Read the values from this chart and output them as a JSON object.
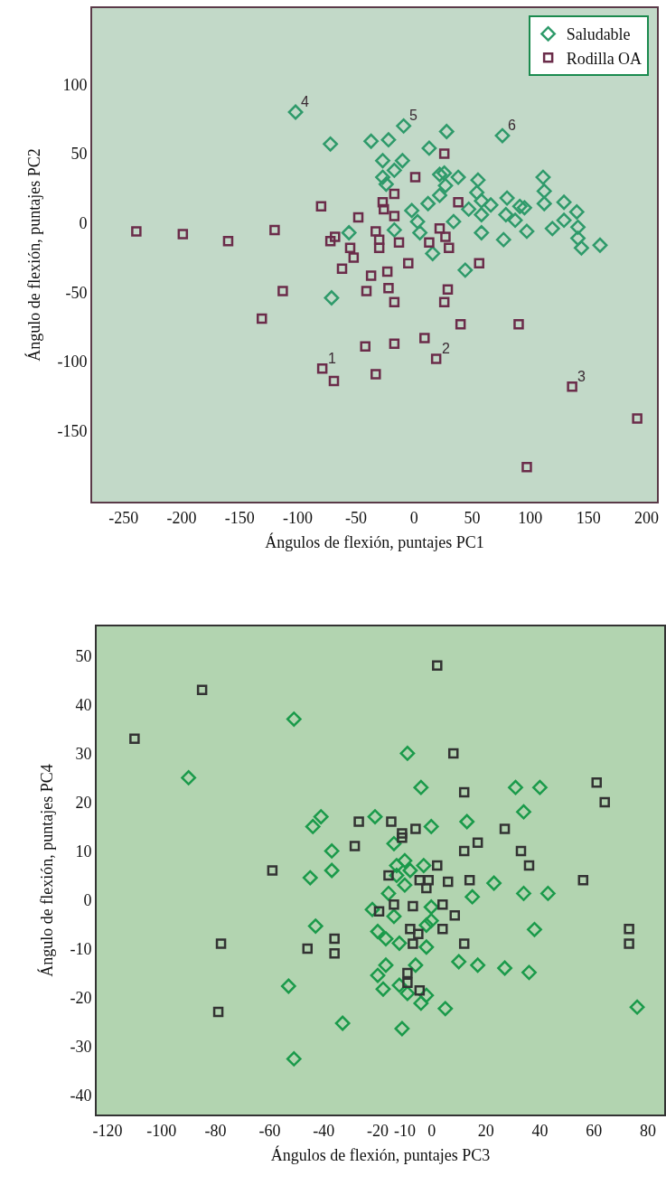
{
  "chart_data": [
    {
      "type": "scatter",
      "xlabel": "Ángulos de flexión, puntajes PC1",
      "ylabel": "Ángulo de flexión, puntajes PC2",
      "xlim": [
        -277,
        209
      ],
      "ylim": [
        -201,
        155
      ],
      "xticks": [
        -250,
        -200,
        -150,
        -100,
        -50,
        0,
        50,
        100,
        150,
        200
      ],
      "yticks": [
        -150,
        -100,
        -50,
        0,
        50,
        100
      ],
      "grid": false,
      "legend": "top right",
      "annotations": [
        {
          "text": "1",
          "x": -79,
          "y": -105
        },
        {
          "text": "2",
          "x": 19,
          "y": -98
        },
        {
          "text": "3",
          "x": 136,
          "y": -118
        },
        {
          "text": "4",
          "x": -102,
          "y": 80
        },
        {
          "text": "5",
          "x": -9,
          "y": 70
        },
        {
          "text": "6",
          "x": 76,
          "y": 63
        }
      ],
      "series": [
        {
          "name": "Saludable",
          "color": "#2e9a6a",
          "marker": "diamond",
          "x": [
            -102,
            -72,
            -37,
            -22,
            -27,
            -9,
            28,
            13,
            -10,
            -17,
            -27,
            -24,
            22,
            26,
            38,
            55,
            27,
            22,
            12,
            -2,
            3,
            5,
            16,
            -17,
            34,
            47,
            54,
            58,
            66,
            58,
            58,
            44,
            76,
            80,
            79,
            87,
            91,
            95,
            97,
            77,
            111,
            112,
            112,
            129,
            129,
            119,
            140,
            141,
            141,
            144,
            160,
            -56,
            -71
          ],
          "values": [
            80,
            57,
            59,
            60,
            45,
            70,
            66,
            54,
            45,
            38,
            33,
            28,
            35,
            36,
            33,
            31,
            27,
            20,
            14,
            9,
            1,
            -7,
            -22,
            -5,
            1,
            10,
            22,
            16,
            13,
            6,
            -7,
            -34,
            63,
            18,
            6,
            2,
            12,
            11,
            -6,
            -12,
            33,
            23,
            14,
            15,
            2,
            -4,
            8,
            -3,
            -11,
            -18,
            -16,
            -7,
            -54
          ]
        },
        {
          "name": "Rodilla OA",
          "color": "#6b2c4a",
          "marker": "square",
          "x": [
            -239,
            -199,
            -160,
            -120,
            -80,
            -48,
            -72,
            -68,
            -55,
            -52,
            -62,
            -131,
            -113,
            -79,
            -69,
            26,
            1,
            -17,
            -27,
            -26,
            -17,
            38,
            -33,
            -30,
            -30,
            -13,
            13,
            22,
            27,
            30,
            -5,
            56,
            -37,
            -23,
            -22,
            -41,
            -17,
            29,
            26,
            40,
            90,
            -42,
            -17,
            9,
            19,
            -33,
            136,
            192,
            97
          ],
          "values": [
            -6,
            -8,
            -13,
            -5,
            12,
            4,
            -13,
            -10,
            -18,
            -25,
            -33,
            -69,
            -49,
            -105,
            -114,
            50,
            33,
            21,
            15,
            10,
            5,
            15,
            -6,
            -12,
            -18,
            -14,
            -14,
            -4,
            -10,
            -18,
            -29,
            -29,
            -38,
            -35,
            -47,
            -49,
            -57,
            -48,
            -57,
            -73,
            -73,
            -89,
            -87,
            -83,
            -98,
            -109,
            -118,
            -141,
            -176
          ]
        }
      ]
    },
    {
      "type": "scatter",
      "xlabel": "Ángulos de flexión, puntajes PC3",
      "ylabel": "Ángulo de flexión, puntajes PC4",
      "xlim": [
        -124,
        86
      ],
      "ylim": [
        -44,
        56
      ],
      "xticks": [
        -120,
        -100,
        -80,
        -60,
        -40,
        -20,
        -10,
        0,
        20,
        40,
        60,
        80
      ],
      "yticks": [
        -40,
        -30,
        -20,
        -10,
        0,
        10,
        20,
        30,
        40,
        50
      ],
      "grid": false,
      "series": [
        {
          "color": "#1a9a4a",
          "marker": "diamond",
          "x": [
            -51,
            -90,
            -41,
            -44,
            -21,
            -37,
            -37,
            -45,
            -22,
            -20,
            -43,
            -53,
            -33,
            -51,
            -20,
            -18,
            -9,
            -4,
            31,
            40,
            34,
            -0.2,
            13,
            -14,
            -13,
            -10,
            -8,
            -13,
            -3,
            -10,
            23,
            34,
            43,
            -16,
            15,
            -14,
            -0.2,
            -2,
            -0.2,
            -17,
            -12,
            -2,
            38,
            -17,
            -6,
            10,
            17,
            27,
            36,
            -12,
            -9,
            -2,
            -4,
            5,
            -11,
            76
          ],
          "values": [
            37,
            25,
            17,
            15,
            17,
            10,
            6,
            4.5,
            -2,
            -6.5,
            -5.4,
            -17.7,
            -25.3,
            -32.6,
            -15.5,
            -18.3,
            30,
            23,
            23,
            23,
            18,
            15,
            16,
            11.5,
            7,
            8,
            6,
            5,
            7,
            3,
            3.4,
            1.3,
            1.3,
            1.3,
            0.6,
            -3.4,
            -1.5,
            -5.2,
            -4.3,
            -8,
            -8.9,
            -9.7,
            -6.1,
            -13.4,
            -13.4,
            -12.7,
            -13.4,
            -14,
            -14.9,
            -17.5,
            -19.2,
            -19.6,
            -21.2,
            -22.3,
            -26.4,
            -22
          ]
        },
        {
          "color": "#333333",
          "marker": "square",
          "x": [
            -85,
            -110,
            -27,
            -28.5,
            -59,
            -19.5,
            -78,
            -36,
            -36,
            -46,
            -79,
            2,
            8,
            12,
            61,
            64,
            -15,
            -6,
            27,
            -11,
            -11,
            12,
            17,
            33,
            36,
            2,
            -16,
            -4.5,
            -2,
            -1.2,
            6,
            14,
            56,
            -14,
            -7,
            4,
            8.5,
            4,
            -8,
            -5,
            -7,
            12,
            73,
            73,
            -9,
            -9,
            -4.5
          ],
          "values": [
            43,
            33,
            16,
            11,
            6,
            -2.4,
            -9,
            -8,
            -11,
            -10,
            -23,
            48,
            30,
            22,
            24,
            20,
            16,
            14.5,
            14.5,
            13.6,
            12.7,
            10,
            11.7,
            10,
            7,
            7,
            5,
            4,
            2.4,
            4,
            3.7,
            4,
            4,
            -1,
            -1.3,
            -1,
            -3.2,
            -6,
            -6,
            -7,
            -9,
            -9,
            -6,
            -9,
            -15,
            -17,
            -18.6
          ]
        }
      ]
    }
  ]
}
